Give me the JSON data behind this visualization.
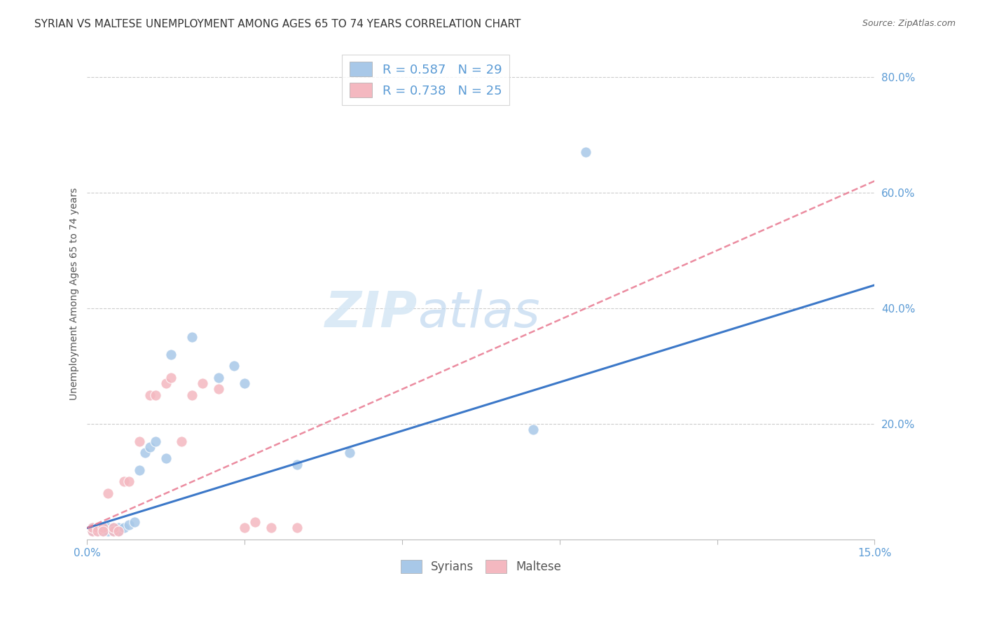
{
  "title": "SYRIAN VS MALTESE UNEMPLOYMENT AMONG AGES 65 TO 74 YEARS CORRELATION CHART",
  "source": "Source: ZipAtlas.com",
  "ylabel": "Unemployment Among Ages 65 to 74 years",
  "xlim": [
    0.0,
    0.15
  ],
  "ylim": [
    0.0,
    0.85
  ],
  "xticks": [
    0.0,
    0.03,
    0.06,
    0.09,
    0.12,
    0.15
  ],
  "ytick_labels": [
    "20.0%",
    "40.0%",
    "60.0%",
    "80.0%"
  ],
  "yticks": [
    0.2,
    0.4,
    0.6,
    0.8
  ],
  "syrians_R": "R = 0.587",
  "syrians_N": "N = 29",
  "maltese_R": "R = 0.738",
  "maltese_N": "N = 25",
  "syrians_color": "#a8c8e8",
  "maltese_color": "#f4b8c0",
  "syrian_line_color": "#3c78c8",
  "maltese_line_color": "#e87890",
  "watermark_zip": "ZIP",
  "watermark_atlas": "atlas",
  "syrians_x": [
    0.001,
    0.001,
    0.002,
    0.002,
    0.003,
    0.003,
    0.004,
    0.004,
    0.005,
    0.005,
    0.006,
    0.006,
    0.007,
    0.008,
    0.009,
    0.01,
    0.011,
    0.012,
    0.013,
    0.015,
    0.016,
    0.02,
    0.025,
    0.028,
    0.03,
    0.04,
    0.05,
    0.085,
    0.095
  ],
  "syrians_y": [
    0.015,
    0.02,
    0.015,
    0.02,
    0.015,
    0.02,
    0.02,
    0.015,
    0.015,
    0.02,
    0.02,
    0.015,
    0.02,
    0.025,
    0.03,
    0.12,
    0.15,
    0.16,
    0.17,
    0.14,
    0.32,
    0.35,
    0.28,
    0.3,
    0.27,
    0.13,
    0.15,
    0.19,
    0.67
  ],
  "maltese_x": [
    0.001,
    0.001,
    0.002,
    0.002,
    0.003,
    0.003,
    0.004,
    0.005,
    0.005,
    0.006,
    0.007,
    0.008,
    0.01,
    0.012,
    0.013,
    0.015,
    0.016,
    0.018,
    0.02,
    0.022,
    0.025,
    0.03,
    0.032,
    0.035,
    0.04
  ],
  "maltese_y": [
    0.015,
    0.02,
    0.02,
    0.015,
    0.02,
    0.015,
    0.08,
    0.015,
    0.02,
    0.015,
    0.1,
    0.1,
    0.17,
    0.25,
    0.25,
    0.27,
    0.28,
    0.17,
    0.25,
    0.27,
    0.26,
    0.02,
    0.03,
    0.02,
    0.02
  ],
  "syrian_line_x0": 0.0,
  "syrian_line_y0": 0.02,
  "syrian_line_x1": 0.15,
  "syrian_line_y1": 0.44,
  "maltese_line_x0": 0.0,
  "maltese_line_y0": 0.02,
  "maltese_line_x1": 0.15,
  "maltese_line_y1": 0.62,
  "background_color": "#ffffff",
  "grid_color": "#cccccc",
  "title_fontsize": 11,
  "axis_label_fontsize": 10,
  "tick_fontsize": 11,
  "legend_fontsize": 13,
  "source_fontsize": 9,
  "watermark_fontsize_zip": 52,
  "watermark_fontsize_atlas": 52
}
